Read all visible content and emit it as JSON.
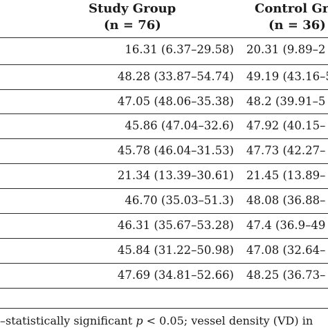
{
  "table": {
    "headers": [
      {
        "title": "Study Group",
        "n": "(n = 76)"
      },
      {
        "title": "Control Gr",
        "n": "(n = 36)"
      }
    ],
    "rows": [
      {
        "study": "16.31 (6.37–29.58)",
        "control": "20.31 (9.89–2"
      },
      {
        "study": "48.28 (33.87–54.74)",
        "control": "49.19 (43.16–5"
      },
      {
        "study": "47.05 (48.06–35.38)",
        "control": "48.2 (39.91–5"
      },
      {
        "study": "45.86 (47.04–32.6)",
        "control": "47.92 (40.15–"
      },
      {
        "study": "45.78 (46.04–31.53)",
        "control": "47.73 (42.27–"
      },
      {
        "study": "21.34 (13.39–30.61)",
        "control": "21.45 (13.89–"
      },
      {
        "study": "46.70 (35.03–51.3)",
        "control": "48.08 (36.88–"
      },
      {
        "study": "46.31 (35.67–53.28)",
        "control": "47.4 (36.9–49"
      },
      {
        "study": "45.84 (31.22–50.98)",
        "control": "47.08 (32.64–"
      },
      {
        "study": "47.69 (34.81–52.66)",
        "control": "48.25 (36.73–"
      }
    ]
  },
  "footnote": {
    "prefix": "–statistically significant ",
    "p_symbol": "p",
    "suffix": " < 0.05; vessel density (VD) in"
  }
}
